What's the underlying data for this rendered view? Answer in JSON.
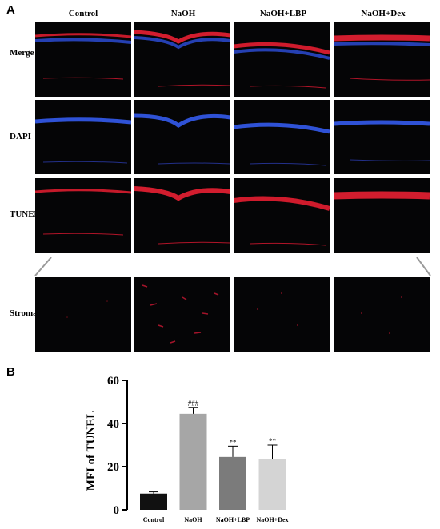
{
  "panel_a": {
    "label": "A",
    "columns": [
      "Control",
      "NaOH",
      "NaOH+LBP",
      "NaOH+Dex"
    ],
    "rows": [
      "Merge",
      "DAPI",
      "TUNEL",
      "Stroma"
    ]
  },
  "panel_b": {
    "label": "B"
  },
  "chart_data": {
    "type": "bar",
    "categories": [
      "Control",
      "NaOH",
      "NaOH+LBP",
      "NaOH+Dex"
    ],
    "values": [
      7.5,
      44.5,
      24.5,
      23.5
    ],
    "errors": [
      0.8,
      3.0,
      5.0,
      6.5
    ],
    "significance": [
      "",
      "###",
      "**",
      "**"
    ],
    "bar_colors": [
      "#111111",
      "#a6a6a6",
      "#7b7b7b",
      "#d4d4d4"
    ],
    "xlabel": "",
    "ylabel": "MFI of TUNEL",
    "ylim": [
      0,
      60
    ],
    "yticks": [
      0,
      20,
      40,
      60
    ]
  }
}
